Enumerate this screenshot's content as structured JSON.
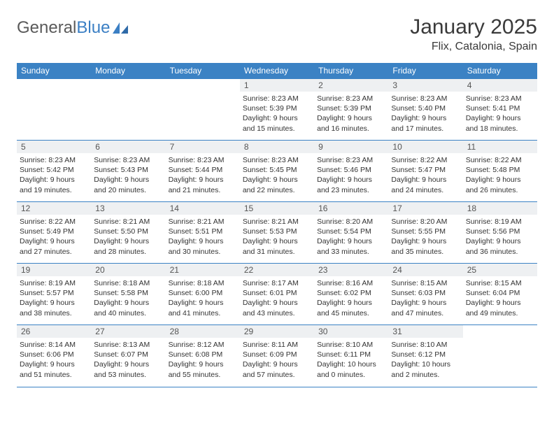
{
  "logo": {
    "text1": "General",
    "text2": "Blue"
  },
  "title": "January 2025",
  "location": "Flix, Catalonia, Spain",
  "colors": {
    "header_bg": "#3b82c4",
    "header_text": "#ffffff",
    "daynum_bg": "#eef0f2",
    "rule": "#3b82c4",
    "body_text": "#333333",
    "logo_gray": "#5a5a5a",
    "logo_blue": "#3b7fc4"
  },
  "font": {
    "title_size": 30,
    "location_size": 16,
    "dayhead_size": 12,
    "body_size": 10.5
  },
  "dayNames": [
    "Sunday",
    "Monday",
    "Tuesday",
    "Wednesday",
    "Thursday",
    "Friday",
    "Saturday"
  ],
  "labels": {
    "sunrise": "Sunrise: ",
    "sunset": "Sunset: ",
    "daylight": "Daylight: "
  },
  "weeks": [
    [
      null,
      null,
      null,
      {
        "n": "1",
        "sr": "8:23 AM",
        "ss": "5:39 PM",
        "dl": "9 hours and 15 minutes."
      },
      {
        "n": "2",
        "sr": "8:23 AM",
        "ss": "5:39 PM",
        "dl": "9 hours and 16 minutes."
      },
      {
        "n": "3",
        "sr": "8:23 AM",
        "ss": "5:40 PM",
        "dl": "9 hours and 17 minutes."
      },
      {
        "n": "4",
        "sr": "8:23 AM",
        "ss": "5:41 PM",
        "dl": "9 hours and 18 minutes."
      }
    ],
    [
      {
        "n": "5",
        "sr": "8:23 AM",
        "ss": "5:42 PM",
        "dl": "9 hours and 19 minutes."
      },
      {
        "n": "6",
        "sr": "8:23 AM",
        "ss": "5:43 PM",
        "dl": "9 hours and 20 minutes."
      },
      {
        "n": "7",
        "sr": "8:23 AM",
        "ss": "5:44 PM",
        "dl": "9 hours and 21 minutes."
      },
      {
        "n": "8",
        "sr": "8:23 AM",
        "ss": "5:45 PM",
        "dl": "9 hours and 22 minutes."
      },
      {
        "n": "9",
        "sr": "8:23 AM",
        "ss": "5:46 PM",
        "dl": "9 hours and 23 minutes."
      },
      {
        "n": "10",
        "sr": "8:22 AM",
        "ss": "5:47 PM",
        "dl": "9 hours and 24 minutes."
      },
      {
        "n": "11",
        "sr": "8:22 AM",
        "ss": "5:48 PM",
        "dl": "9 hours and 26 minutes."
      }
    ],
    [
      {
        "n": "12",
        "sr": "8:22 AM",
        "ss": "5:49 PM",
        "dl": "9 hours and 27 minutes."
      },
      {
        "n": "13",
        "sr": "8:21 AM",
        "ss": "5:50 PM",
        "dl": "9 hours and 28 minutes."
      },
      {
        "n": "14",
        "sr": "8:21 AM",
        "ss": "5:51 PM",
        "dl": "9 hours and 30 minutes."
      },
      {
        "n": "15",
        "sr": "8:21 AM",
        "ss": "5:53 PM",
        "dl": "9 hours and 31 minutes."
      },
      {
        "n": "16",
        "sr": "8:20 AM",
        "ss": "5:54 PM",
        "dl": "9 hours and 33 minutes."
      },
      {
        "n": "17",
        "sr": "8:20 AM",
        "ss": "5:55 PM",
        "dl": "9 hours and 35 minutes."
      },
      {
        "n": "18",
        "sr": "8:19 AM",
        "ss": "5:56 PM",
        "dl": "9 hours and 36 minutes."
      }
    ],
    [
      {
        "n": "19",
        "sr": "8:19 AM",
        "ss": "5:57 PM",
        "dl": "9 hours and 38 minutes."
      },
      {
        "n": "20",
        "sr": "8:18 AM",
        "ss": "5:58 PM",
        "dl": "9 hours and 40 minutes."
      },
      {
        "n": "21",
        "sr": "8:18 AM",
        "ss": "6:00 PM",
        "dl": "9 hours and 41 minutes."
      },
      {
        "n": "22",
        "sr": "8:17 AM",
        "ss": "6:01 PM",
        "dl": "9 hours and 43 minutes."
      },
      {
        "n": "23",
        "sr": "8:16 AM",
        "ss": "6:02 PM",
        "dl": "9 hours and 45 minutes."
      },
      {
        "n": "24",
        "sr": "8:15 AM",
        "ss": "6:03 PM",
        "dl": "9 hours and 47 minutes."
      },
      {
        "n": "25",
        "sr": "8:15 AM",
        "ss": "6:04 PM",
        "dl": "9 hours and 49 minutes."
      }
    ],
    [
      {
        "n": "26",
        "sr": "8:14 AM",
        "ss": "6:06 PM",
        "dl": "9 hours and 51 minutes."
      },
      {
        "n": "27",
        "sr": "8:13 AM",
        "ss": "6:07 PM",
        "dl": "9 hours and 53 minutes."
      },
      {
        "n": "28",
        "sr": "8:12 AM",
        "ss": "6:08 PM",
        "dl": "9 hours and 55 minutes."
      },
      {
        "n": "29",
        "sr": "8:11 AM",
        "ss": "6:09 PM",
        "dl": "9 hours and 57 minutes."
      },
      {
        "n": "30",
        "sr": "8:10 AM",
        "ss": "6:11 PM",
        "dl": "10 hours and 0 minutes."
      },
      {
        "n": "31",
        "sr": "8:10 AM",
        "ss": "6:12 PM",
        "dl": "10 hours and 2 minutes."
      },
      null
    ]
  ]
}
